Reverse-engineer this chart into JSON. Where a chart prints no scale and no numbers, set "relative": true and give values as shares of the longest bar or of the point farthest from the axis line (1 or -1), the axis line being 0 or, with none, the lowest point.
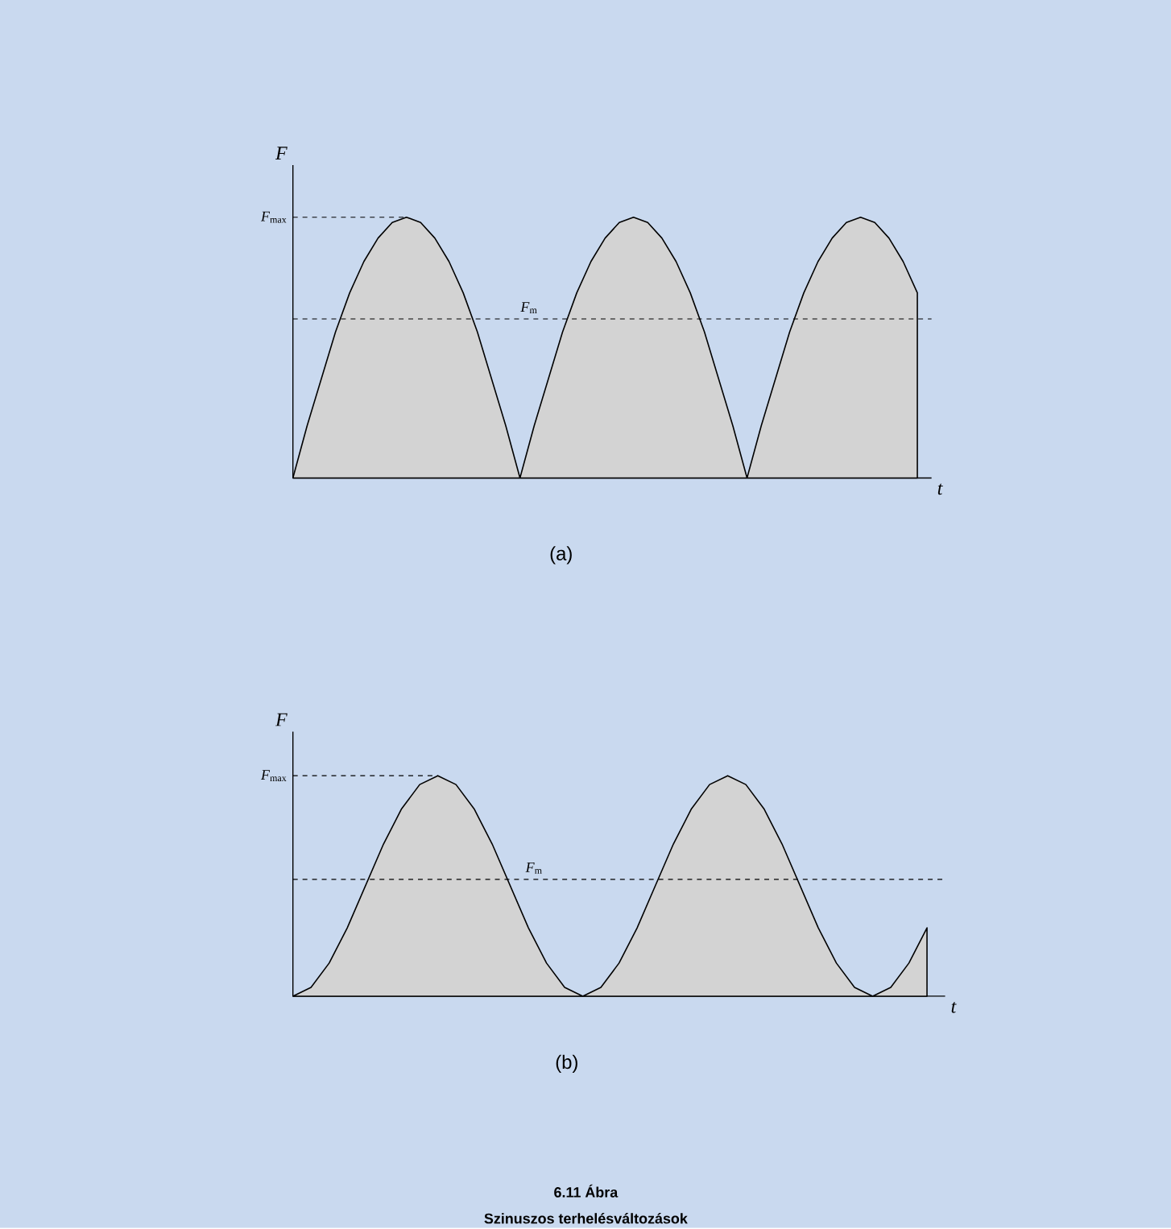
{
  "chart_data": [
    {
      "type": "area",
      "title": "(a)",
      "xlabel": "t",
      "ylabel": "F",
      "relative": true,
      "color": "#d3d3d3",
      "categories": [
        null,
        null,
        null,
        null,
        null,
        null,
        null,
        null,
        null,
        null,
        null,
        null,
        null,
        null,
        null,
        null,
        null,
        null,
        null,
        null,
        null,
        null,
        null,
        null,
        null,
        null,
        null,
        null,
        null,
        null,
        null,
        null,
        null,
        null,
        null,
        null,
        null,
        null,
        null,
        null,
        null,
        null,
        null,
        null,
        null
      ],
      "values": [
        0,
        0.2,
        0.38,
        0.56,
        0.71,
        0.83,
        0.92,
        0.98,
        1,
        0.98,
        0.92,
        0.83,
        0.71,
        0.56,
        0.38,
        0.2,
        0,
        0.2,
        0.38,
        0.56,
        0.71,
        0.83,
        0.92,
        0.98,
        1,
        0.98,
        0.92,
        0.83,
        0.71,
        0.56,
        0.38,
        0.2,
        0,
        0.2,
        0.38,
        0.56,
        0.71,
        0.83,
        0.92,
        0.98,
        1,
        0.98,
        0.92,
        0.83,
        0.71
      ],
      "ref_lines": [
        {
          "axis": "y",
          "value": 1,
          "label": "*F*$_{max}$",
          "line_style": "dashed"
        },
        {
          "axis": "y",
          "value": 0.61,
          "label": "*F*$_{m}$",
          "line_style": "dashed"
        }
      ]
    },
    {
      "type": "area",
      "title": "(b)",
      "xlabel": "t",
      "ylabel": "F",
      "relative": true,
      "color": "#d3d3d3",
      "categories": [
        null,
        null,
        null,
        null,
        null,
        null,
        null,
        null,
        null,
        null,
        null,
        null,
        null,
        null,
        null,
        null,
        null,
        null,
        null,
        null,
        null,
        null,
        null,
        null,
        null,
        null,
        null,
        null,
        null,
        null,
        null,
        null,
        null,
        null,
        null,
        null
      ],
      "values": [
        0,
        0.04,
        0.15,
        0.31,
        0.5,
        0.69,
        0.85,
        0.96,
        1,
        0.96,
        0.85,
        0.69,
        0.5,
        0.31,
        0.15,
        0.04,
        0,
        0.04,
        0.15,
        0.31,
        0.5,
        0.69,
        0.85,
        0.96,
        1,
        0.96,
        0.85,
        0.69,
        0.5,
        0.31,
        0.15,
        0.04,
        0,
        0.04,
        0.15,
        0.31
      ],
      "ref_lines": [
        {
          "axis": "y",
          "value": 1,
          "label": "*F*$_{max}$",
          "line_style": "dashed"
        },
        {
          "axis": "y",
          "value": 0.53,
          "label": "*F*$_{m}$",
          "line_style": "dashed"
        }
      ],
      "annotations": [
        "6.11 Ábra",
        "Szinuszos terhelésváltozások"
      ]
    }
  ]
}
